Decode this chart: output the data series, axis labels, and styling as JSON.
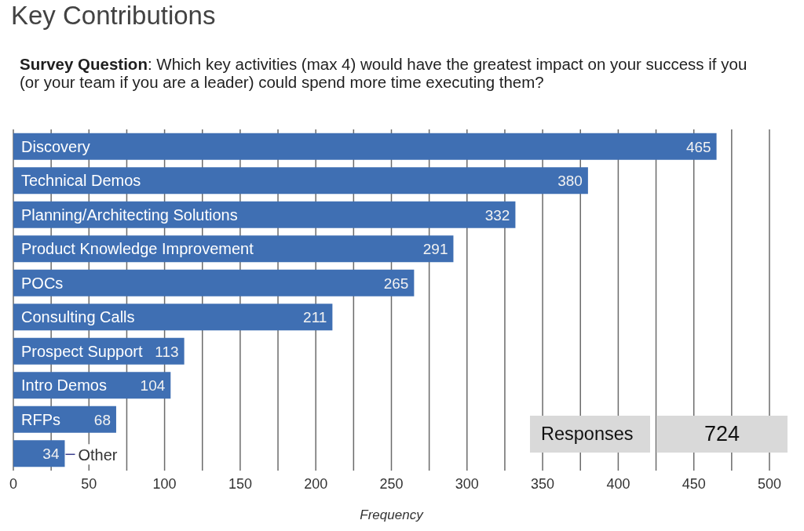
{
  "chart_data": {
    "type": "bar",
    "orientation": "horizontal",
    "title": "Key Contributions",
    "subtitle": "Survey Question: Which key activities (max 4) would have the greatest impact on your success if you (or your team if you are a leader) could spend more time executing them?",
    "xlabel": "Frequency",
    "categories": [
      "Discovery",
      "Technical Demos",
      "Planning/Architecting Solutions",
      "Product Knowledge Improvement",
      "POCs",
      "Consulting Calls",
      "Prospect Support",
      "Intro Demos",
      "RFPs",
      "Other"
    ],
    "values": [
      465,
      380,
      332,
      291,
      265,
      211,
      113,
      104,
      68,
      34
    ],
    "color": "#3f6fb3",
    "xlim": [
      0,
      500
    ],
    "xticks": [
      0,
      {
        "value": 25,
        "label": null
      },
      50,
      {
        "value": 75,
        "label": null
      },
      100,
      {
        "value": 125,
        "label": null
      },
      150,
      {
        "value": 175,
        "label": null
      },
      200,
      {
        "value": 225,
        "label": null
      },
      250,
      {
        "value": 275,
        "label": null
      },
      300,
      {
        "value": 325,
        "label": null
      },
      350,
      {
        "value": 375,
        "label": null
      },
      400,
      {
        "value": 425,
        "label": null
      },
      450,
      {
        "value": 475,
        "label": null
      },
      500
    ],
    "grid": "x",
    "data_labels": true,
    "annotations": [
      "Responses",
      "724"
    ]
  }
}
